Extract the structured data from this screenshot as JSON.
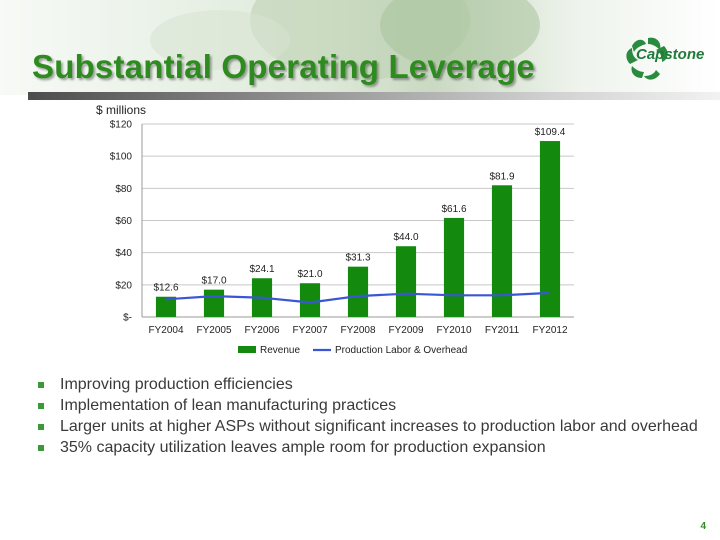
{
  "slide": {
    "title": "Substantial Operating Leverage",
    "logo_text": "Capstone",
    "page_number": "4",
    "brand_color": "#2e8b1f"
  },
  "chart_data": {
    "type": "bar",
    "units_label": "$ millions",
    "categories": [
      "FY2004",
      "FY2005",
      "FY2006",
      "FY2007",
      "FY2008",
      "FY2009",
      "FY2010",
      "FY2011",
      "FY2012"
    ],
    "series": [
      {
        "name": "Revenue",
        "kind": "bar",
        "color": "#138a0e",
        "values": [
          12.6,
          17.0,
          24.1,
          21.0,
          31.3,
          44.0,
          61.6,
          81.9,
          109.4
        ],
        "labels": [
          "$12.6",
          "$17.0",
          "$24.1",
          "$21.0",
          "$31.3",
          "$44.0",
          "$61.6",
          "$81.9",
          "$109.4"
        ]
      },
      {
        "name": "Production Labor & Overhead",
        "kind": "line",
        "color": "#3a56d4",
        "values": [
          11,
          13,
          12,
          9,
          13,
          14.5,
          13.5,
          13.5,
          15
        ]
      }
    ],
    "ylim": [
      0,
      120
    ],
    "yticks": [
      0,
      20,
      40,
      60,
      80,
      100,
      120
    ],
    "ytick_labels": [
      "$-",
      "$20",
      "$40",
      "$60",
      "$80",
      "$100",
      "$120"
    ],
    "grid": true,
    "legend_position": "bottom"
  },
  "bullets": [
    "Improving production efficiencies",
    "Implementation of lean manufacturing practices",
    "Larger units at higher ASPs without significant increases to production labor and overhead",
    "35% capacity utilization leaves ample room for production expansion"
  ]
}
